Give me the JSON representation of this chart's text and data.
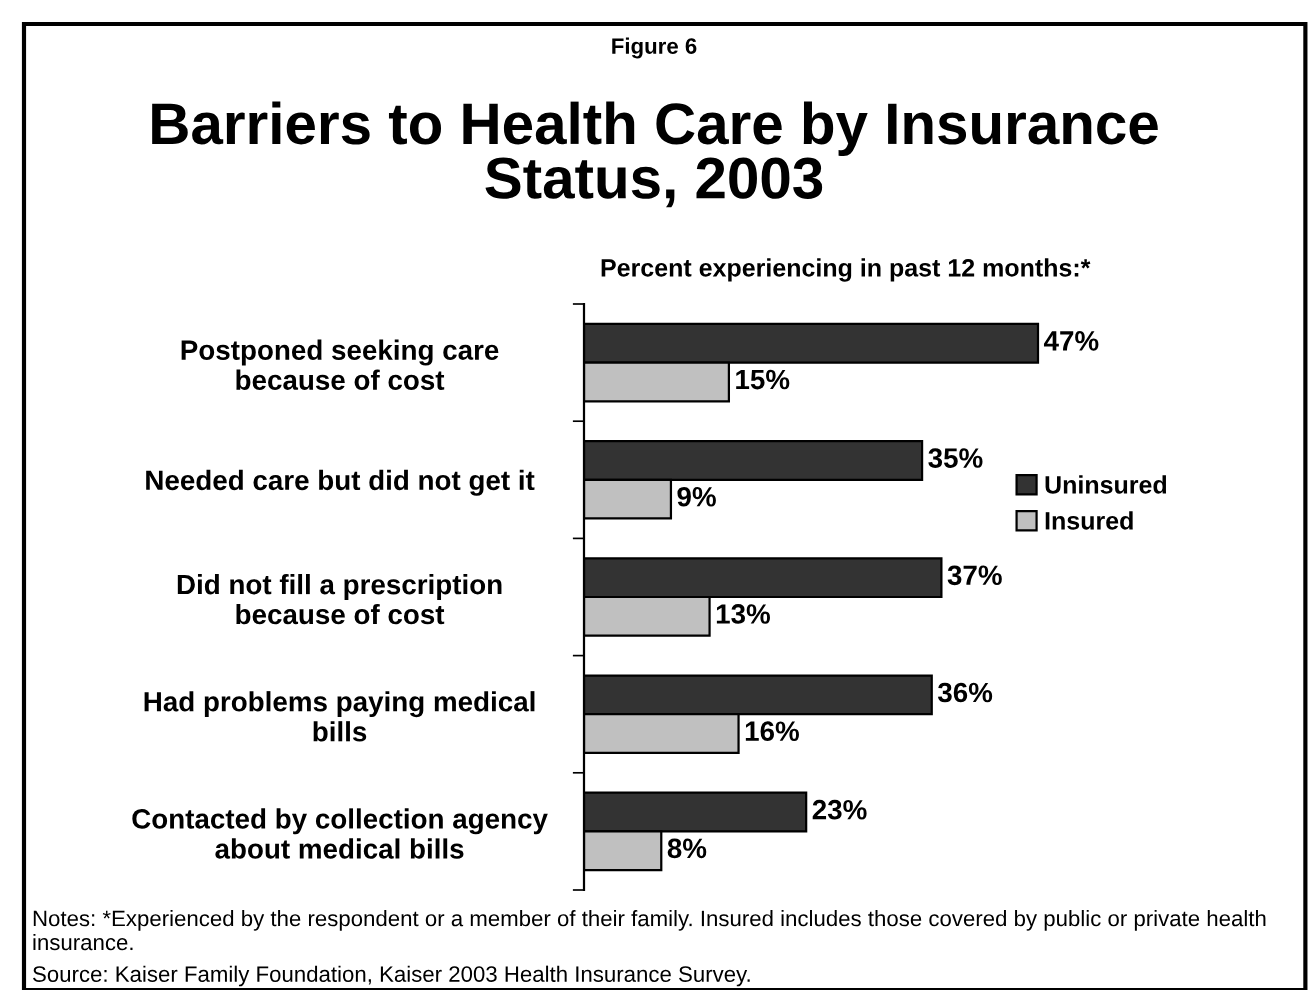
{
  "chart_data": {
    "type": "bar",
    "orientation": "horizontal",
    "subtitle": "Figure 6",
    "title": "Barriers to Health Care by Insurance Status, 2003",
    "xlabel": "Percent experiencing in past 12 months:*",
    "categories": [
      "Postponed seeking care\nbecause of cost",
      "Needed care but did not get it",
      "Did not fill a prescription\nbecause of cost",
      "Had problems paying medical\nbills",
      "Contacted by collection agency\nabout medical bills"
    ],
    "series": [
      {
        "name": "Uninsured",
        "color": "#333333",
        "values": [
          47,
          35,
          37,
          36,
          23
        ],
        "value_labels": [
          "47%",
          "35%",
          "37%",
          "36%",
          "23%"
        ]
      },
      {
        "name": "Insured",
        "color": "#c0c0c0",
        "values": [
          15,
          9,
          13,
          16,
          8
        ],
        "value_labels": [
          "15%",
          "9%",
          "13%",
          "16%",
          "8%"
        ]
      }
    ],
    "legend": "right",
    "annotations": [
      "Notes: *Experienced by the respondent or a member of their family. Insured includes those covered by public or private health insurance.",
      "Source: Kaiser Family Foundation, Kaiser 2003 Health Insurance Survey."
    ]
  }
}
